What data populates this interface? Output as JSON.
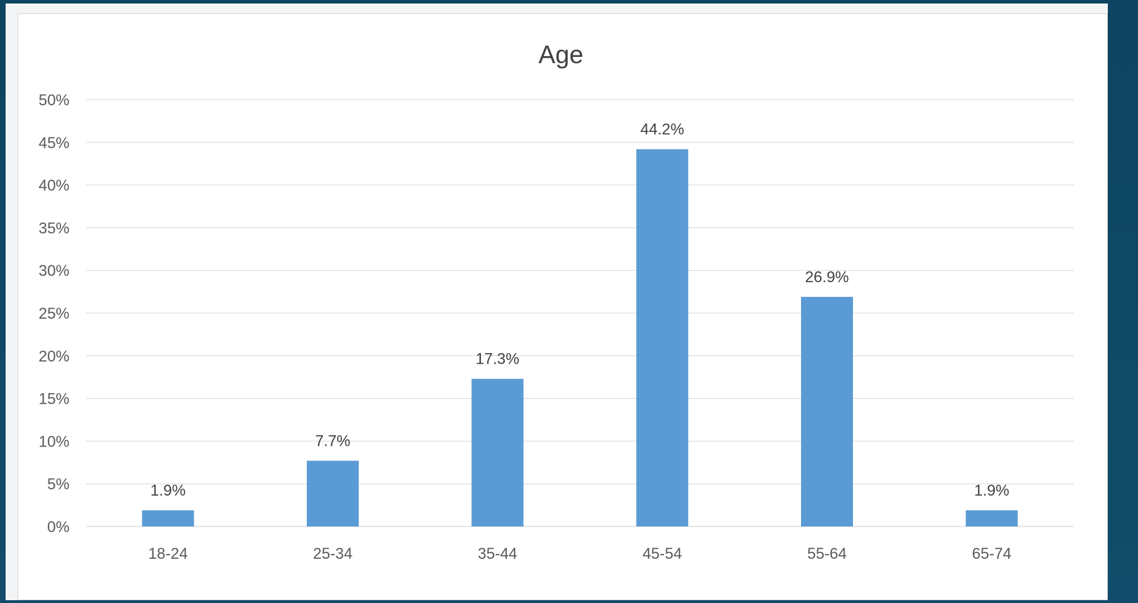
{
  "chart_data": {
    "type": "bar",
    "title": "Age",
    "xlabel": "",
    "ylabel": "",
    "categories": [
      "18-24",
      "25-34",
      "35-44",
      "45-54",
      "55-64",
      "65-74"
    ],
    "values": [
      1.9,
      7.7,
      17.3,
      44.2,
      26.9,
      1.9
    ],
    "data_labels": [
      "1.9%",
      "7.7%",
      "17.3%",
      "44.2%",
      "26.9%",
      "1.9%"
    ],
    "ylim": [
      0,
      50
    ],
    "yticks": [
      0,
      5,
      10,
      15,
      20,
      25,
      30,
      35,
      40,
      45,
      50
    ],
    "ytick_labels": [
      "0%",
      "5%",
      "10%",
      "15%",
      "20%",
      "25%",
      "30%",
      "35%",
      "40%",
      "45%",
      "50%"
    ],
    "grid": true,
    "legend": "none",
    "colors": {
      "bar": "#5b9bd5"
    }
  }
}
